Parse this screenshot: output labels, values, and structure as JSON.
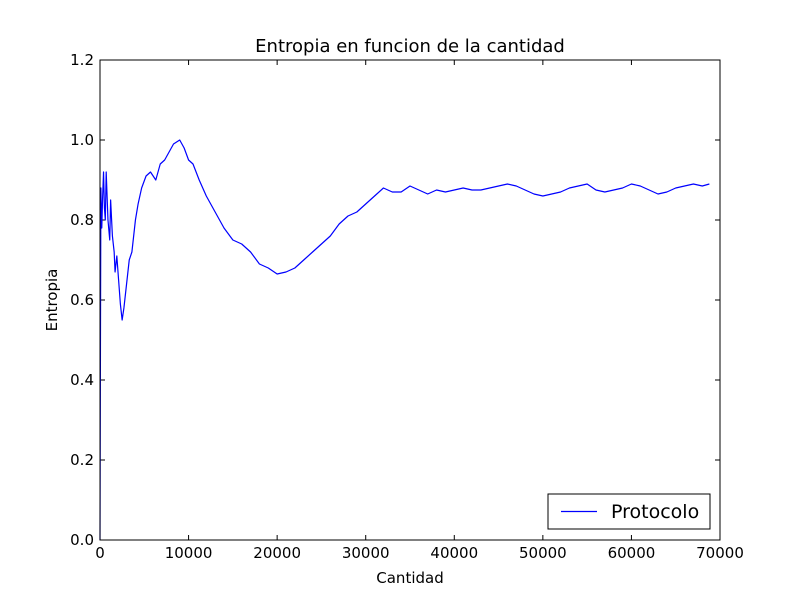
{
  "chart_data": {
    "type": "line",
    "title": "Entropia en funcion de la cantidad",
    "xlabel": "Cantidad",
    "ylabel": "Entropia",
    "xlim": [
      0,
      70000
    ],
    "ylim": [
      0.0,
      1.2
    ],
    "xticks": [
      0,
      10000,
      20000,
      30000,
      40000,
      50000,
      60000,
      70000
    ],
    "xtick_labels": [
      "0",
      "10000",
      "20000",
      "30000",
      "40000",
      "50000",
      "60000",
      "70000"
    ],
    "yticks": [
      0.0,
      0.2,
      0.4,
      0.6,
      0.8,
      1.0,
      1.2
    ],
    "ytick_labels": [
      "0.0",
      "0.2",
      "0.4",
      "0.6",
      "0.8",
      "1.0",
      "1.2"
    ],
    "grid": false,
    "legend": {
      "position": "lower-right",
      "entries": [
        "Protocolo"
      ]
    },
    "series": [
      {
        "name": "Protocolo",
        "color": "#0000ff",
        "points": [
          [
            0,
            0.0
          ],
          [
            50,
            0.48
          ],
          [
            100,
            0.88
          ],
          [
            200,
            0.78
          ],
          [
            300,
            0.86
          ],
          [
            400,
            0.92
          ],
          [
            500,
            0.83
          ],
          [
            600,
            0.8
          ],
          [
            700,
            0.92
          ],
          [
            900,
            0.8
          ],
          [
            1100,
            0.75
          ],
          [
            1200,
            0.85
          ],
          [
            1400,
            0.76
          ],
          [
            1600,
            0.72
          ],
          [
            1700,
            0.67
          ],
          [
            1900,
            0.71
          ],
          [
            2100,
            0.65
          ],
          [
            2300,
            0.59
          ],
          [
            2500,
            0.55
          ],
          [
            2700,
            0.58
          ],
          [
            3000,
            0.64
          ],
          [
            3300,
            0.7
          ],
          [
            3600,
            0.72
          ],
          [
            4000,
            0.8
          ],
          [
            4300,
            0.84
          ],
          [
            4700,
            0.88
          ],
          [
            5200,
            0.91
          ],
          [
            5700,
            0.92
          ],
          [
            6300,
            0.9
          ],
          [
            6800,
            0.94
          ],
          [
            7300,
            0.95
          ],
          [
            7800,
            0.97
          ],
          [
            8300,
            0.99
          ],
          [
            9000,
            1.0
          ],
          [
            9500,
            0.98
          ],
          [
            10000,
            0.95
          ],
          [
            10500,
            0.94
          ],
          [
            11200,
            0.9
          ],
          [
            12000,
            0.86
          ],
          [
            13000,
            0.82
          ],
          [
            14000,
            0.78
          ],
          [
            15000,
            0.75
          ],
          [
            16000,
            0.74
          ],
          [
            17000,
            0.72
          ],
          [
            18000,
            0.69
          ],
          [
            19000,
            0.68
          ],
          [
            20000,
            0.665
          ],
          [
            21000,
            0.67
          ],
          [
            22000,
            0.68
          ],
          [
            23000,
            0.7
          ],
          [
            24000,
            0.72
          ],
          [
            25000,
            0.74
          ],
          [
            26000,
            0.76
          ],
          [
            27000,
            0.79
          ],
          [
            28000,
            0.81
          ],
          [
            29000,
            0.82
          ],
          [
            30000,
            0.84
          ],
          [
            31000,
            0.86
          ],
          [
            32000,
            0.88
          ],
          [
            33000,
            0.87
          ],
          [
            34000,
            0.87
          ],
          [
            35000,
            0.885
          ],
          [
            36000,
            0.875
          ],
          [
            37000,
            0.865
          ],
          [
            38000,
            0.875
          ],
          [
            39000,
            0.87
          ],
          [
            40000,
            0.875
          ],
          [
            41000,
            0.88
          ],
          [
            42000,
            0.875
          ],
          [
            43000,
            0.875
          ],
          [
            44000,
            0.88
          ],
          [
            45000,
            0.885
          ],
          [
            46000,
            0.89
          ],
          [
            47000,
            0.885
          ],
          [
            48000,
            0.875
          ],
          [
            49000,
            0.865
          ],
          [
            50000,
            0.86
          ],
          [
            51000,
            0.865
          ],
          [
            52000,
            0.87
          ],
          [
            53000,
            0.88
          ],
          [
            54000,
            0.885
          ],
          [
            55000,
            0.89
          ],
          [
            56000,
            0.875
          ],
          [
            57000,
            0.87
          ],
          [
            58000,
            0.875
          ],
          [
            59000,
            0.88
          ],
          [
            60000,
            0.89
          ],
          [
            61000,
            0.885
          ],
          [
            62000,
            0.875
          ],
          [
            63000,
            0.865
          ],
          [
            64000,
            0.87
          ],
          [
            65000,
            0.88
          ],
          [
            66000,
            0.885
          ],
          [
            67000,
            0.89
          ],
          [
            68000,
            0.885
          ],
          [
            68800,
            0.89
          ]
        ]
      }
    ]
  }
}
